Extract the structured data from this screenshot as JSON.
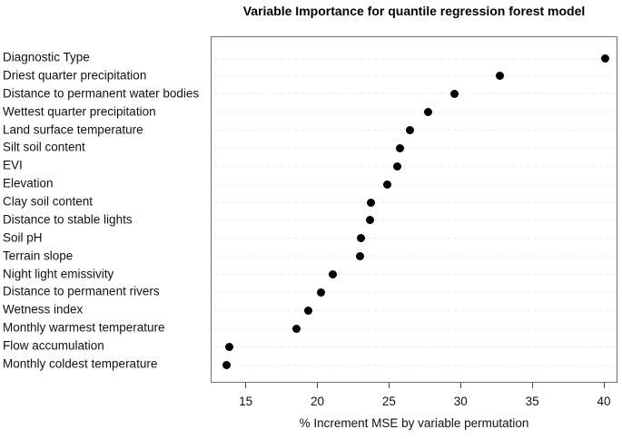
{
  "chart_data": {
    "type": "scatter",
    "variant": "dotchart-horizontal",
    "title": "Variable Importance for quantile regression forest model",
    "xlabel": "% Increment MSE by variable permutation",
    "categories": [
      "Diagnostic Type",
      "Driest quarter precipitation",
      "Distance to permanent water bodies",
      "Wettest quarter precipitation",
      "Land surface temperature",
      "Silt soil content",
      "EVI",
      "Elevation",
      "Clay soil content",
      "Distance to stable lights",
      "Soil pH",
      "Terrain slope",
      "Night light emissivity",
      "Distance to permanent rivers",
      "Wetness index",
      "Monthly warmest temperature",
      "Flow accumulation",
      "Monthly coldest temperature"
    ],
    "values": [
      40.0,
      32.7,
      29.5,
      27.7,
      26.4,
      25.7,
      25.5,
      24.8,
      23.7,
      23.6,
      23.0,
      22.9,
      21.0,
      20.2,
      19.3,
      18.5,
      13.8,
      13.6
    ],
    "xticks": [
      15,
      20,
      25,
      30,
      35,
      40
    ],
    "xlim": [
      12.55,
      40.95
    ],
    "grid": "dotted-horizontal-per-category",
    "legend": "none",
    "colors": {
      "point": "#000000",
      "gridline": "#d4d4d4",
      "box_border": "#6f6f6f",
      "text": "#111111"
    }
  }
}
